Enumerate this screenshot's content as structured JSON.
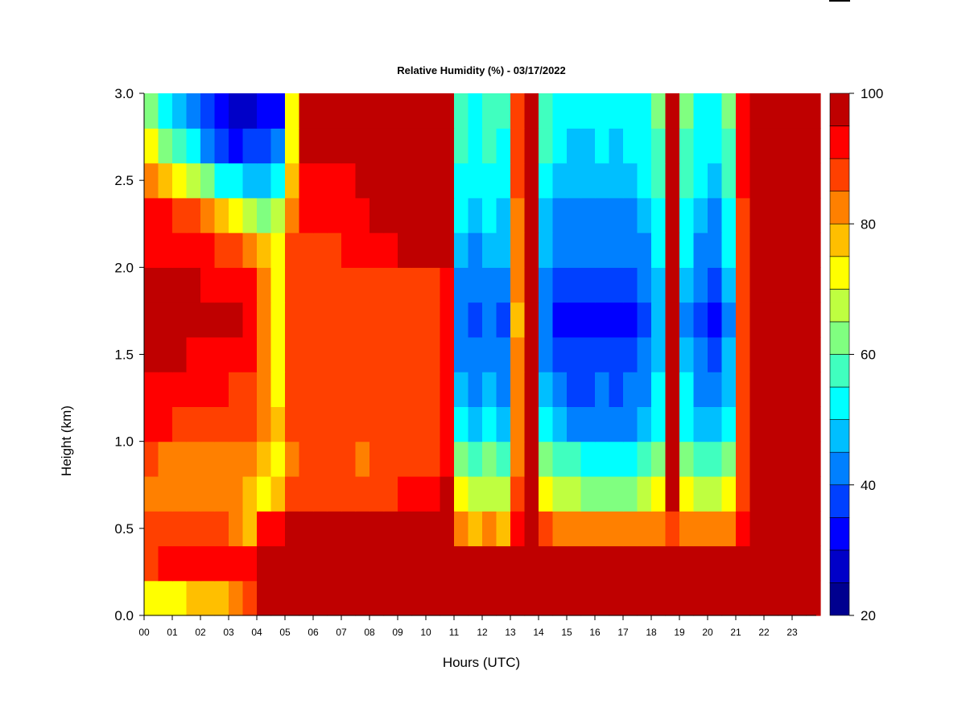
{
  "chart_data": {
    "type": "heatmap",
    "title": "Relative Humidity (%) - 03/17/2022",
    "xlabel": "Hours (UTC)",
    "ylabel": "Height (km)",
    "x_ticks": [
      "00",
      "01",
      "02",
      "03",
      "04",
      "05",
      "06",
      "07",
      "08",
      "09",
      "10",
      "11",
      "12",
      "13",
      "14",
      "15",
      "16",
      "17",
      "18",
      "19",
      "20",
      "21",
      "22",
      "23"
    ],
    "y_ticks": [
      "0.0",
      "0.5",
      "1.0",
      "1.5",
      "2.0",
      "2.5",
      "3.0"
    ],
    "xlim": [
      0,
      24
    ],
    "ylim": [
      0.0,
      3.0
    ],
    "colorbar": {
      "ticks": [
        "20",
        "40",
        "60",
        "80",
        "100"
      ],
      "min": 20,
      "max": 100,
      "levels": [
        20,
        25,
        30,
        35,
        40,
        45,
        50,
        55,
        60,
        65,
        70,
        75,
        80,
        85,
        90,
        95,
        100
      ],
      "colors": [
        "#00008f",
        "#0000c8",
        "#0000ff",
        "#0040ff",
        "#0080ff",
        "#00bfff",
        "#00ffff",
        "#40ffbf",
        "#80ff80",
        "#bfff40",
        "#ffff00",
        "#ffbf00",
        "#ff8000",
        "#ff4000",
        "#ff0000",
        "#bf0000",
        "#800000"
      ]
    },
    "z_grid": {
      "units": "%",
      "heights_km": [
        0.1,
        0.3,
        0.5,
        0.7,
        0.9,
        1.1,
        1.3,
        1.5,
        1.7,
        1.9,
        2.1,
        2.3,
        2.5,
        2.7,
        2.9
      ],
      "hours": [
        0.25,
        0.75,
        1.25,
        1.75,
        2.25,
        2.75,
        3.25,
        3.75,
        4.25,
        4.75,
        5.25,
        5.75,
        6.25,
        6.75,
        7.25,
        7.75,
        8.25,
        8.75,
        9.25,
        9.75,
        10.25,
        10.75,
        11.25,
        11.75,
        12.25,
        12.75,
        13.25,
        13.75,
        14.25,
        14.75,
        15.25,
        15.75,
        16.25,
        16.75,
        17.25,
        17.75,
        18.25,
        18.75,
        19.25,
        19.75,
        20.25,
        20.75,
        21.25,
        21.75,
        22.25,
        22.75,
        23.25,
        23.75
      ],
      "values": [
        [
          70,
          72,
          74,
          75,
          76,
          78,
          82,
          86,
          95,
          98,
          99,
          99,
          99,
          99,
          99,
          99,
          99,
          99,
          99,
          99,
          99,
          99,
          99,
          99,
          99,
          99,
          99,
          99,
          99,
          99,
          99,
          99,
          99,
          99,
          99,
          99,
          99,
          99,
          99,
          99,
          99,
          99,
          99,
          99,
          99,
          99,
          99,
          99
        ],
        [
          88,
          90,
          90,
          91,
          92,
          92,
          93,
          94,
          97,
          98,
          99,
          99,
          99,
          99,
          99,
          99,
          99,
          99,
          99,
          99,
          99,
          99,
          99,
          99,
          99,
          99,
          99,
          99,
          99,
          99,
          99,
          99,
          99,
          99,
          99,
          99,
          99,
          99,
          99,
          99,
          99,
          99,
          99,
          99,
          99,
          99,
          99,
          99
        ],
        [
          89,
          88,
          88,
          87,
          86,
          86,
          84,
          78,
          92,
          94,
          96,
          97,
          97,
          97,
          97,
          97,
          98,
          98,
          98,
          98,
          98,
          98,
          80,
          78,
          80,
          78,
          90,
          99,
          86,
          82,
          82,
          80,
          80,
          80,
          80,
          82,
          84,
          88,
          82,
          80,
          80,
          82,
          90,
          98,
          99,
          99,
          99,
          99
        ],
        [
          84,
          82,
          82,
          80,
          80,
          80,
          80,
          78,
          74,
          78,
          86,
          88,
          88,
          88,
          87,
          86,
          88,
          89,
          90,
          90,
          90,
          95,
          70,
          66,
          68,
          66,
          86,
          99,
          72,
          66,
          66,
          64,
          64,
          64,
          64,
          66,
          70,
          99,
          72,
          68,
          66,
          72,
          88,
          99,
          99,
          99,
          99,
          99
        ],
        [
          86,
          84,
          84,
          82,
          82,
          82,
          82,
          80,
          76,
          72,
          84,
          86,
          86,
          86,
          85,
          84,
          86,
          87,
          88,
          88,
          88,
          94,
          62,
          58,
          60,
          56,
          82,
          99,
          62,
          56,
          56,
          54,
          54,
          52,
          54,
          56,
          62,
          99,
          64,
          58,
          56,
          62,
          86,
          99,
          99,
          99,
          99,
          99
        ],
        [
          90,
          90,
          89,
          88,
          88,
          88,
          87,
          86,
          80,
          75,
          86,
          88,
          88,
          88,
          87,
          86,
          87,
          88,
          88,
          88,
          88,
          94,
          52,
          48,
          50,
          48,
          80,
          99,
          52,
          46,
          44,
          44,
          44,
          44,
          44,
          46,
          54,
          99,
          54,
          48,
          46,
          54,
          86,
          99,
          99,
          99,
          99,
          99
        ],
        [
          92,
          92,
          92,
          91,
          90,
          90,
          89,
          88,
          82,
          74,
          86,
          88,
          88,
          88,
          87,
          86,
          87,
          88,
          88,
          88,
          88,
          94,
          46,
          42,
          46,
          44,
          80,
          99,
          46,
          40,
          38,
          38,
          40,
          38,
          40,
          42,
          50,
          99,
          50,
          42,
          40,
          48,
          86,
          99,
          99,
          99,
          99,
          99
        ],
        [
          96,
          96,
          95,
          94,
          94,
          94,
          92,
          90,
          84,
          74,
          86,
          88,
          88,
          88,
          87,
          86,
          87,
          88,
          88,
          88,
          88,
          94,
          44,
          40,
          44,
          42,
          80,
          99,
          44,
          38,
          36,
          36,
          38,
          36,
          38,
          40,
          48,
          99,
          48,
          40,
          38,
          46,
          86,
          99,
          99,
          99,
          99,
          99
        ],
        [
          98,
          98,
          97,
          96,
          96,
          96,
          95,
          92,
          84,
          74,
          86,
          88,
          88,
          88,
          87,
          86,
          87,
          88,
          88,
          88,
          88,
          94,
          40,
          36,
          40,
          38,
          78,
          99,
          40,
          34,
          32,
          32,
          34,
          32,
          34,
          36,
          46,
          99,
          44,
          36,
          34,
          42,
          86,
          99,
          99,
          99,
          99,
          99
        ],
        [
          96,
          96,
          96,
          95,
          94,
          94,
          93,
          90,
          82,
          72,
          86,
          88,
          88,
          88,
          87,
          86,
          87,
          88,
          88,
          88,
          88,
          94,
          44,
          40,
          44,
          42,
          80,
          99,
          44,
          38,
          36,
          36,
          38,
          36,
          38,
          40,
          48,
          99,
          48,
          40,
          38,
          46,
          86,
          99,
          99,
          99,
          99,
          99
        ],
        [
          94,
          94,
          93,
          92,
          90,
          88,
          86,
          84,
          78,
          70,
          86,
          89,
          89,
          89,
          90,
          90,
          92,
          94,
          95,
          96,
          97,
          98,
          48,
          44,
          48,
          46,
          82,
          99,
          48,
          42,
          40,
          40,
          42,
          40,
          42,
          44,
          50,
          99,
          50,
          44,
          42,
          50,
          88,
          99,
          99,
          99,
          99,
          99
        ],
        [
          90,
          90,
          88,
          86,
          82,
          78,
          72,
          68,
          64,
          66,
          84,
          90,
          90,
          90,
          92,
          93,
          95,
          97,
          98,
          99,
          99,
          99,
          50,
          46,
          50,
          48,
          84,
          99,
          48,
          44,
          42,
          42,
          44,
          42,
          44,
          46,
          52,
          99,
          52,
          46,
          44,
          52,
          88,
          99,
          99,
          99,
          99,
          99
        ],
        [
          80,
          78,
          72,
          66,
          60,
          54,
          50,
          48,
          48,
          52,
          76,
          94,
          94,
          94,
          94,
          95,
          96,
          98,
          99,
          99,
          99,
          99,
          54,
          50,
          54,
          52,
          86,
          99,
          52,
          48,
          46,
          46,
          48,
          46,
          48,
          50,
          56,
          99,
          56,
          50,
          48,
          56,
          90,
          99,
          99,
          99,
          99,
          99
        ],
        [
          70,
          62,
          56,
          50,
          44,
          38,
          34,
          36,
          38,
          42,
          72,
          96,
          95,
          95,
          95,
          96,
          97,
          98,
          99,
          99,
          99,
          99,
          56,
          52,
          56,
          54,
          88,
          99,
          56,
          50,
          48,
          48,
          50,
          48,
          50,
          52,
          58,
          99,
          58,
          52,
          50,
          58,
          90,
          99,
          99,
          99,
          99,
          99
        ],
        [
          62,
          54,
          48,
          42,
          36,
          30,
          28,
          28,
          30,
          34,
          70,
          96,
          96,
          96,
          96,
          97,
          98,
          99,
          99,
          99,
          99,
          99,
          58,
          54,
          58,
          56,
          88,
          99,
          58,
          52,
          50,
          50,
          52,
          50,
          52,
          54,
          60,
          99,
          60,
          54,
          52,
          60,
          90,
          99,
          99,
          99,
          99,
          99
        ]
      ]
    }
  }
}
